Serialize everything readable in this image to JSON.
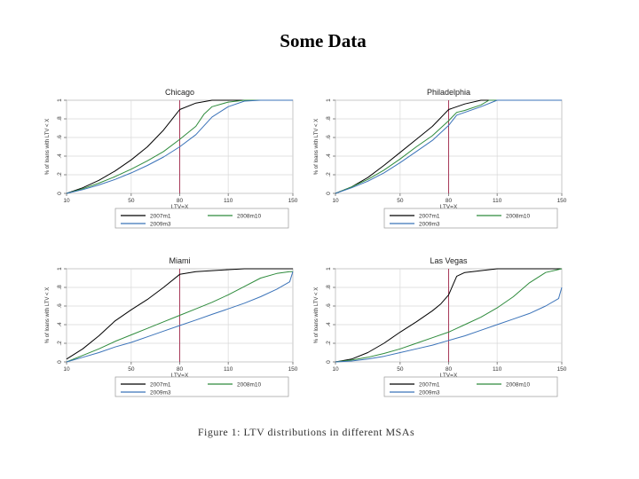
{
  "slide": {
    "title": "Some Data",
    "caption": "Figure 1: LTV distributions in different MSAs"
  },
  "colors": {
    "2007m1": "#000000",
    "2008m10": "#2e8b3c",
    "2009m3": "#3b73b9",
    "refline": "#a83a5a",
    "grid": "#d8d8d8"
  },
  "chart_data": [
    {
      "type": "line",
      "title": "Chicago",
      "xlabel": "LTV=X",
      "ylabel": "% of loans with LTV < X",
      "xlim": [
        10,
        150
      ],
      "ylim": [
        0,
        1
      ],
      "xticks": [
        10,
        50,
        80,
        110,
        150
      ],
      "yticks": [
        0,
        0.2,
        0.4,
        0.6,
        0.8,
        1
      ],
      "ytick_labels": [
        "0",
        ".2",
        ".4",
        ".6",
        ".8",
        "1"
      ],
      "vline": 80,
      "grid": true,
      "legend_position": "bottom",
      "legend": [
        "2007m1",
        "2008m10",
        "2009m3"
      ],
      "series": [
        {
          "name": "2007m1",
          "x": [
            10,
            20,
            30,
            40,
            50,
            60,
            70,
            80,
            90,
            100,
            110,
            120,
            150
          ],
          "y": [
            0.0,
            0.06,
            0.14,
            0.24,
            0.36,
            0.5,
            0.68,
            0.9,
            0.97,
            1.0,
            1.0,
            1.0,
            1.0
          ]
        },
        {
          "name": "2008m10",
          "x": [
            10,
            20,
            30,
            40,
            50,
            60,
            70,
            80,
            90,
            95,
            100,
            110,
            120,
            150
          ],
          "y": [
            0.0,
            0.05,
            0.11,
            0.18,
            0.26,
            0.35,
            0.45,
            0.58,
            0.72,
            0.85,
            0.93,
            0.98,
            1.0,
            1.0
          ]
        },
        {
          "name": "2009m3",
          "x": [
            10,
            20,
            30,
            40,
            50,
            60,
            70,
            80,
            90,
            100,
            110,
            120,
            130,
            150
          ],
          "y": [
            0.0,
            0.04,
            0.09,
            0.15,
            0.22,
            0.3,
            0.39,
            0.5,
            0.63,
            0.82,
            0.93,
            0.99,
            1.0,
            1.0
          ]
        }
      ]
    },
    {
      "type": "line",
      "title": "Philadelphia",
      "xlabel": "LTV=X",
      "ylabel": "% of loans with LTV < X",
      "xlim": [
        10,
        150
      ],
      "ylim": [
        0,
        1
      ],
      "xticks": [
        10,
        50,
        80,
        110,
        150
      ],
      "yticks": [
        0,
        0.2,
        0.4,
        0.6,
        0.8,
        1
      ],
      "ytick_labels": [
        "0",
        ".2",
        ".4",
        ".6",
        ".8",
        "1"
      ],
      "vline": 80,
      "grid": true,
      "legend_position": "bottom",
      "legend": [
        "2007m1",
        "2008m10",
        "2009m3"
      ],
      "series": [
        {
          "name": "2007m1",
          "x": [
            10,
            20,
            30,
            40,
            50,
            60,
            70,
            80,
            90,
            100,
            110,
            150
          ],
          "y": [
            0.0,
            0.07,
            0.17,
            0.3,
            0.44,
            0.58,
            0.72,
            0.9,
            0.96,
            1.0,
            1.0,
            1.0
          ]
        },
        {
          "name": "2008m10",
          "x": [
            10,
            20,
            30,
            40,
            50,
            60,
            70,
            80,
            85,
            90,
            100,
            105,
            110,
            150
          ],
          "y": [
            0.0,
            0.07,
            0.15,
            0.25,
            0.37,
            0.5,
            0.62,
            0.78,
            0.87,
            0.89,
            0.95,
            1.0,
            1.0,
            1.0
          ]
        },
        {
          "name": "2009m3",
          "x": [
            10,
            20,
            30,
            40,
            50,
            60,
            70,
            80,
            85,
            90,
            100,
            110,
            150
          ],
          "y": [
            0.0,
            0.06,
            0.13,
            0.22,
            0.33,
            0.45,
            0.57,
            0.73,
            0.84,
            0.87,
            0.93,
            1.0,
            1.0
          ]
        }
      ]
    },
    {
      "type": "line",
      "title": "Miami",
      "xlabel": "LTV=X",
      "ylabel": "% of loans with LTV < X",
      "xlim": [
        10,
        150
      ],
      "ylim": [
        0,
        1
      ],
      "xticks": [
        10,
        50,
        80,
        110,
        150
      ],
      "yticks": [
        0,
        0.2,
        0.4,
        0.6,
        0.8,
        1
      ],
      "ytick_labels": [
        "0",
        ".2",
        ".4",
        ".6",
        ".8",
        "1"
      ],
      "vline": 80,
      "grid": true,
      "legend_position": "bottom",
      "legend": [
        "2007m1",
        "2008m10",
        "2009m3"
      ],
      "series": [
        {
          "name": "2007m1",
          "x": [
            10,
            20,
            30,
            40,
            50,
            60,
            70,
            80,
            90,
            100,
            110,
            120,
            150
          ],
          "y": [
            0.03,
            0.14,
            0.28,
            0.44,
            0.56,
            0.67,
            0.8,
            0.94,
            0.97,
            0.98,
            0.99,
            1.0,
            1.0
          ]
        },
        {
          "name": "2008m10",
          "x": [
            10,
            20,
            30,
            40,
            50,
            60,
            70,
            80,
            90,
            100,
            110,
            120,
            130,
            140,
            148,
            150
          ],
          "y": [
            0.0,
            0.07,
            0.14,
            0.22,
            0.29,
            0.36,
            0.43,
            0.5,
            0.57,
            0.64,
            0.72,
            0.81,
            0.9,
            0.95,
            0.97,
            0.97
          ]
        },
        {
          "name": "2009m3",
          "x": [
            10,
            20,
            30,
            40,
            50,
            60,
            70,
            80,
            90,
            100,
            110,
            120,
            130,
            140,
            148,
            150
          ],
          "y": [
            0.0,
            0.05,
            0.1,
            0.16,
            0.21,
            0.27,
            0.33,
            0.39,
            0.45,
            0.51,
            0.57,
            0.63,
            0.7,
            0.78,
            0.86,
            0.97
          ]
        }
      ]
    },
    {
      "type": "line",
      "title": "Las Vegas",
      "xlabel": "LTV=X",
      "ylabel": "% of loans with LTV < X",
      "xlim": [
        10,
        150
      ],
      "ylim": [
        0,
        1
      ],
      "xticks": [
        10,
        50,
        80,
        110,
        150
      ],
      "yticks": [
        0,
        0.2,
        0.4,
        0.6,
        0.8,
        1
      ],
      "ytick_labels": [
        "0",
        ".2",
        ".4",
        ".6",
        ".8",
        "1"
      ],
      "vline": 80,
      "grid": true,
      "legend_position": "bottom",
      "legend": [
        "2007m1",
        "2008m10",
        "2009m3"
      ],
      "series": [
        {
          "name": "2007m1",
          "x": [
            10,
            20,
            30,
            40,
            50,
            60,
            70,
            75,
            80,
            85,
            90,
            100,
            110,
            150
          ],
          "y": [
            0.0,
            0.03,
            0.1,
            0.2,
            0.32,
            0.43,
            0.55,
            0.62,
            0.72,
            0.92,
            0.96,
            0.98,
            1.0,
            1.0
          ]
        },
        {
          "name": "2008m10",
          "x": [
            10,
            20,
            30,
            40,
            50,
            60,
            70,
            80,
            90,
            100,
            110,
            120,
            130,
            140,
            150
          ],
          "y": [
            0.0,
            0.02,
            0.05,
            0.09,
            0.14,
            0.2,
            0.26,
            0.32,
            0.4,
            0.48,
            0.58,
            0.7,
            0.85,
            0.96,
            1.0
          ]
        },
        {
          "name": "2009m3",
          "x": [
            10,
            20,
            30,
            40,
            50,
            60,
            70,
            80,
            90,
            100,
            110,
            120,
            130,
            140,
            148,
            150
          ],
          "y": [
            0.0,
            0.01,
            0.03,
            0.06,
            0.1,
            0.14,
            0.18,
            0.23,
            0.28,
            0.34,
            0.4,
            0.46,
            0.52,
            0.6,
            0.68,
            0.8
          ]
        }
      ]
    }
  ]
}
